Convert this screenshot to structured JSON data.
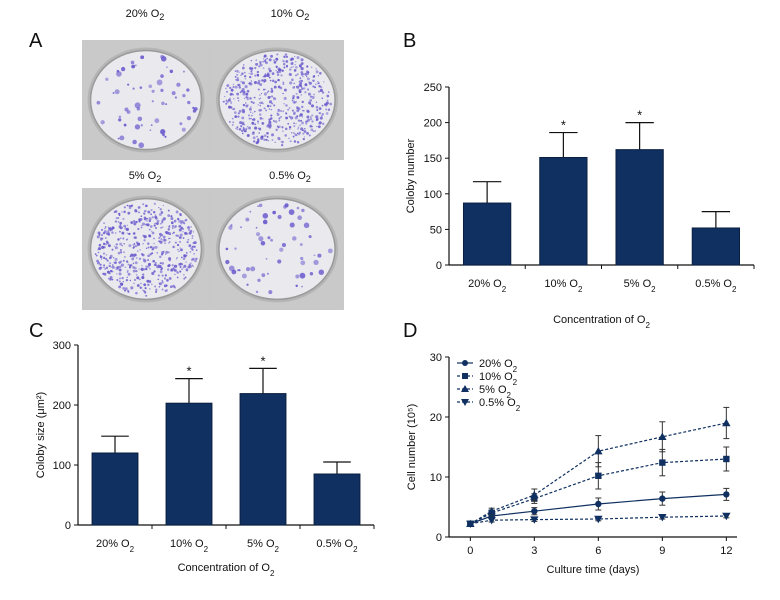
{
  "panels": {
    "a": "A",
    "b": "B",
    "c": "C",
    "d": "D"
  },
  "colors": {
    "bar": "#0f3060",
    "dish_stain": "#6a5acd",
    "background": "#ffffff"
  },
  "photos": [
    {
      "label": "20% O",
      "sub": "2",
      "density": "sparse"
    },
    {
      "label": "10% O",
      "sub": "2",
      "density": "dense"
    },
    {
      "label": "5% O",
      "sub": "2",
      "density": "dense"
    },
    {
      "label": "0.5% O",
      "sub": "2",
      "density": "sparse"
    }
  ],
  "chart_data": [
    {
      "panel": "B",
      "type": "bar",
      "categories": [
        "20% O2",
        "10% O2",
        "5% O2",
        "0.5% O2"
      ],
      "values": [
        87,
        151,
        162,
        52
      ],
      "errors": [
        30,
        35,
        38,
        23
      ],
      "significant": [
        false,
        true,
        true,
        false
      ],
      "ylabel": "Coloby number",
      "xlabel": "Concentration of O2",
      "ylim": [
        0,
        250
      ],
      "yticks": [
        0,
        50,
        100,
        150,
        200,
        250
      ]
    },
    {
      "panel": "C",
      "type": "bar",
      "categories": [
        "20% O2",
        "10% O2",
        "5% O2",
        "0.5% O2"
      ],
      "values": [
        120,
        203,
        219,
        85
      ],
      "errors": [
        28,
        41,
        42,
        20
      ],
      "significant": [
        false,
        true,
        true,
        false
      ],
      "ylabel": "Coloby size (μm²)",
      "xlabel": "Concentration of O2",
      "ylim": [
        0,
        300
      ],
      "yticks": [
        0,
        100,
        200,
        300
      ]
    },
    {
      "panel": "D",
      "type": "line",
      "xlabel": "Culture time (days)",
      "ylabel": "Cell number (10⁵)",
      "xlim": [
        -1,
        12.5
      ],
      "ylim": [
        0,
        30
      ],
      "xticks": [
        0,
        3,
        6,
        9,
        12
      ],
      "yticks": [
        0,
        10,
        20,
        30
      ],
      "series": [
        {
          "name": "20% O2",
          "marker": "circle",
          "dashed": false,
          "x": [
            0,
            1,
            3,
            6,
            9,
            12
          ],
          "y": [
            2.2,
            3.5,
            4.3,
            5.5,
            6.4,
            7.1
          ],
          "err": [
            0,
            0.4,
            0.6,
            1.0,
            1.1,
            1.0
          ]
        },
        {
          "name": "10% O2",
          "marker": "square",
          "dashed": true,
          "x": [
            0,
            1,
            3,
            6,
            9,
            12
          ],
          "y": [
            2.2,
            4.0,
            6.4,
            10.2,
            12.4,
            13.0
          ],
          "err": [
            0,
            0.5,
            0.8,
            2.2,
            2.2,
            2.0
          ]
        },
        {
          "name": "5% O2",
          "marker": "triangle-up",
          "dashed": true,
          "x": [
            0,
            1,
            3,
            6,
            9,
            12
          ],
          "y": [
            2.2,
            4.3,
            7.0,
            14.3,
            16.7,
            19.0
          ],
          "err": [
            0,
            0.5,
            1.0,
            2.6,
            2.5,
            2.6
          ]
        },
        {
          "name": "0.5% O2",
          "marker": "triangle-down",
          "dashed": true,
          "x": [
            0,
            1,
            3,
            6,
            9,
            12
          ],
          "y": [
            2.2,
            2.8,
            2.9,
            3.0,
            3.3,
            3.5
          ],
          "err": [
            0,
            0.3,
            0.3,
            0.3,
            0.3,
            0.3
          ]
        }
      ]
    }
  ]
}
